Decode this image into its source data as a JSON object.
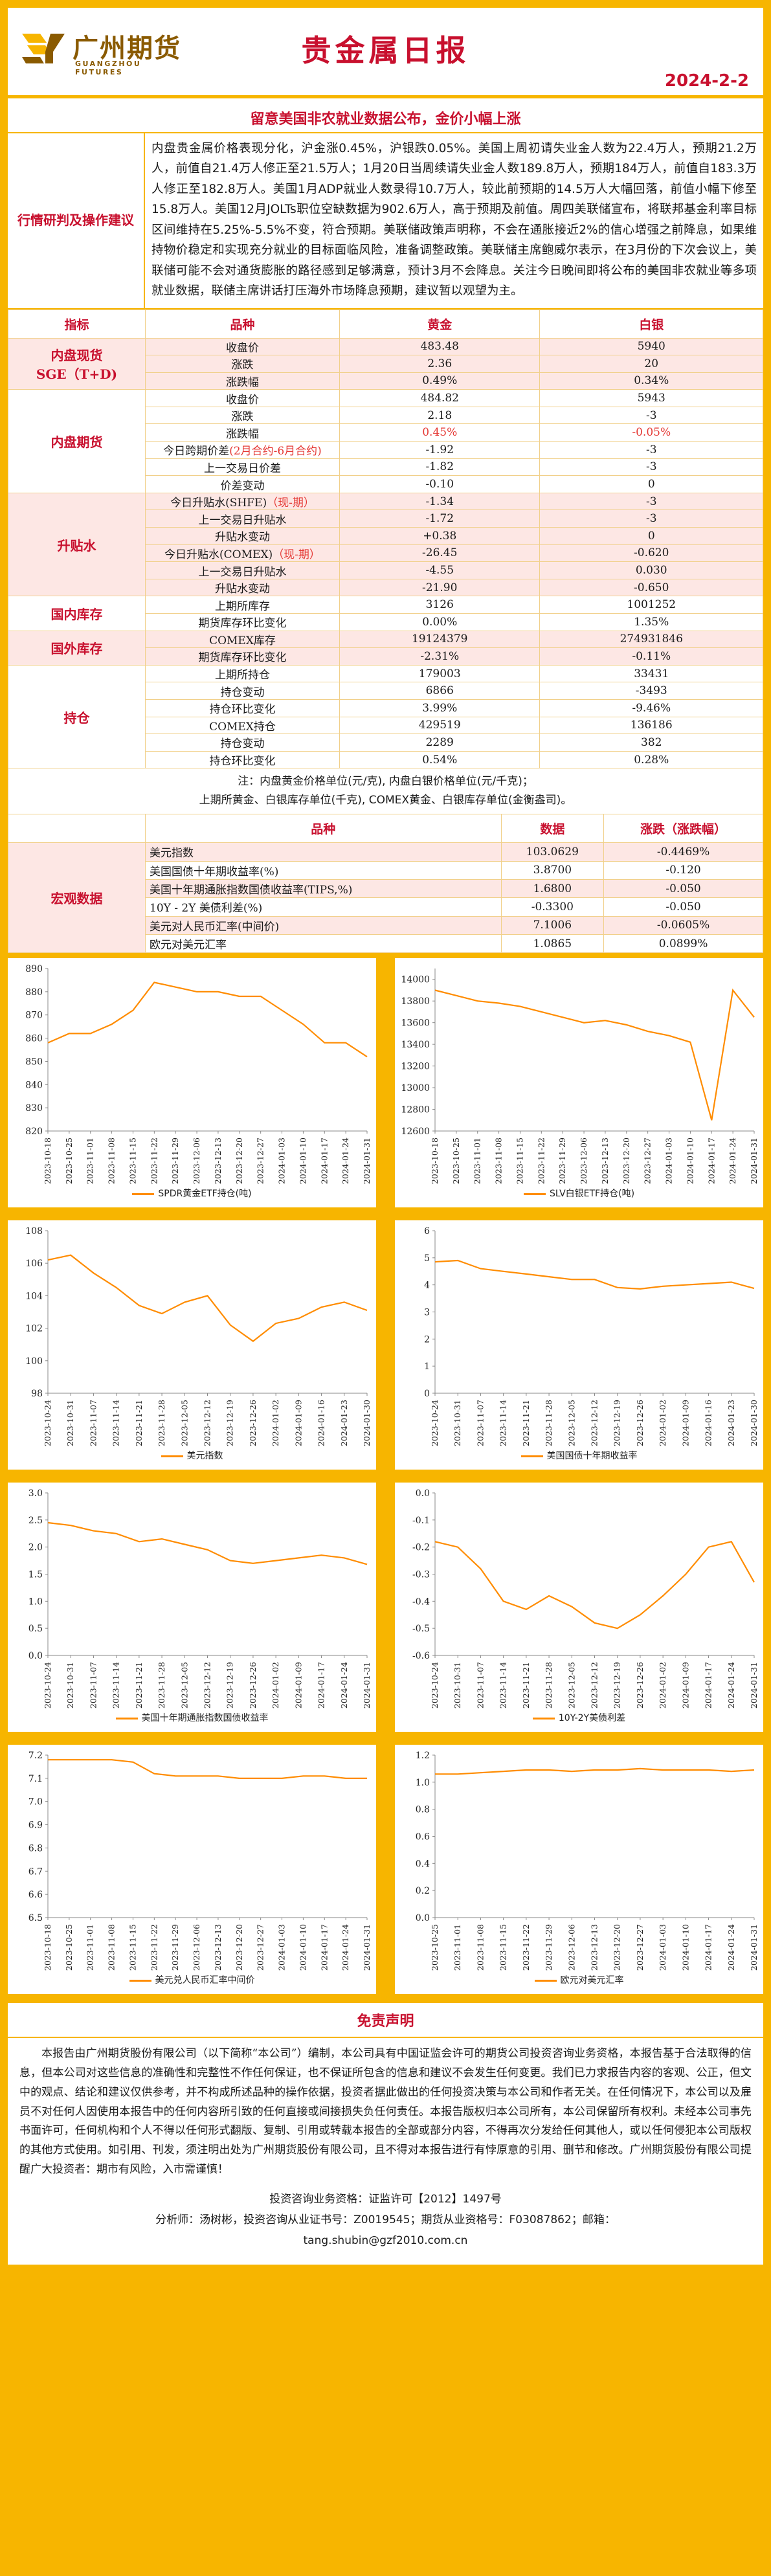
{
  "header": {
    "company_cn": "广州期货",
    "company_en": "GUANGZHOU FUTURES",
    "title": "贵金属日报",
    "date": "2024-2-2",
    "subtitle": "留意美国非农就业数据公布，金价小幅上涨"
  },
  "trend": {
    "label_line1": "行情研判",
    "label_line2": "及操作建议",
    "text": "内盘贵金属价格表现分化，沪金涨0.45%，沪银跌0.05%。美国上周初请失业金人数为22.4万人，预期21.2万人，前值自21.4万人修正至21.5万人；1月20日当周续请失业金人数189.8万人，预期184万人，前值自183.3万人修正至182.8万人。美国1月ADP就业人数录得10.7万人，较此前预期的14.5万人大幅回落，前值小幅下修至15.8万人。美国12月JOLTs职位空缺数据为902.6万人，高于预期及前值。周四美联储宣布，将联邦基金利率目标区间维持在5.25%-5.5%不变，符合预期。美联储政策声明称，不会在通胀接近2%的信心增强之前降息，如果维持物价稳定和实现充分就业的目标面临风险，准备调整政策。美联储主席鲍威尔表示，在3月份的下次会议上，美联储可能不会对通货膨胀的路径感到足够满意，预计3月不会降息。关注今日晚间即将公布的美国非农就业等多项就业数据，联储主席讲话打压海外市场降息预期，建议暂以观望为主。"
  },
  "table": {
    "headers": [
      "指标",
      "品种",
      "黄金",
      "白银"
    ],
    "sections": [
      {
        "group_line1": "内盘现货",
        "group_line2": "SGE（T+D)",
        "rows": [
          {
            "name": "收盘价",
            "gold": "483.48",
            "silver": "5940"
          },
          {
            "name": "涨跌",
            "gold": "2.36",
            "silver": "20"
          },
          {
            "name": "涨跌幅",
            "gold": "0.49%",
            "silver": "0.34%"
          }
        ]
      },
      {
        "group_line1": "内盘期货",
        "group_line2": "",
        "rows": [
          {
            "name": "收盘价",
            "gold": "484.82",
            "silver": "5943"
          },
          {
            "name": "涨跌",
            "gold": "2.18",
            "silver": "-3"
          },
          {
            "name": "涨跌幅",
            "gold": "0.45%",
            "silver": "-0.05%",
            "red": true
          },
          {
            "name": "今日跨期价差",
            "name_suffix": "(2月合约-6月合约)",
            "gold": "-1.92",
            "silver": "-3"
          },
          {
            "name": "上一交易日价差",
            "gold": "-1.82",
            "silver": "-3"
          },
          {
            "name": "价差变动",
            "gold": "-0.10",
            "silver": "0"
          }
        ]
      },
      {
        "group_line1": "升贴水",
        "group_line2": "",
        "rows": [
          {
            "name": "今日升贴水(SHFE)",
            "name_suffix": "（现-期）",
            "gold": "-1.34",
            "silver": "-3"
          },
          {
            "name": "上一交易日升贴水",
            "gold": "-1.72",
            "silver": "-3"
          },
          {
            "name": "升贴水变动",
            "gold": "+0.38",
            "silver": "0"
          },
          {
            "name": "今日升贴水(COMEX)",
            "name_suffix": "（现-期）",
            "gold": "-26.45",
            "silver": "-0.620"
          },
          {
            "name": "上一交易日升贴水",
            "gold": "-4.55",
            "silver": "0.030"
          },
          {
            "name": "升贴水变动",
            "gold": "-21.90",
            "silver": "-0.650"
          }
        ]
      },
      {
        "group_line1": "国内库存",
        "group_line2": "",
        "rows": [
          {
            "name": "上期所库存",
            "gold": "3126",
            "silver": "1001252"
          },
          {
            "name": "期货库存环比变化",
            "gold": "0.00%",
            "silver": "1.35%"
          }
        ]
      },
      {
        "group_line1": "国外库存",
        "group_line2": "",
        "rows": [
          {
            "name": "COMEX库存",
            "gold": "19124379",
            "silver": "274931846"
          },
          {
            "name": "期货库存环比变化",
            "gold": "-2.31%",
            "silver": "-0.11%"
          }
        ]
      },
      {
        "group_line1": "持仓",
        "group_line2": "",
        "rows": [
          {
            "name": "上期所持仓",
            "gold": "179003",
            "silver": "33431"
          },
          {
            "name": "持仓变动",
            "gold": "6866",
            "silver": "-3493"
          },
          {
            "name": "持仓环比变化",
            "gold": "3.99%",
            "silver": "-9.46%"
          },
          {
            "name": "COMEX持仓",
            "gold": "429519",
            "silver": "136186"
          },
          {
            "name": "持仓变动",
            "gold": "2289",
            "silver": "382"
          },
          {
            "name": "持仓环比变化",
            "gold": "0.54%",
            "silver": "0.28%"
          }
        ]
      }
    ],
    "note_line1": "注：内盘黄金价格单位(元/克), 内盘白银价格单位(元/千克)；",
    "note_line2": "上期所黄金、白银库存单位(千克), COMEX黄金、白银库存单位(金衡盎司)。"
  },
  "macro": {
    "group": "宏观数据",
    "headers": [
      "品种",
      "数据",
      "涨跌（涨跌幅）"
    ],
    "rows": [
      {
        "name": "美元指数",
        "value": "103.0629",
        "change": "-0.4469%"
      },
      {
        "name": "美国国债十年期收益率(%)",
        "value": "3.8700",
        "change": "-0.120"
      },
      {
        "name": "美国十年期通胀指数国债收益率(TIPS,%)",
        "value": "1.6800",
        "change": "-0.050"
      },
      {
        "name": "10Y - 2Y 美债利差(%)",
        "value": "-0.3300",
        "change": "-0.050"
      },
      {
        "name": "美元对人民币汇率(中间价)",
        "value": "7.1006",
        "change": "-0.0605%"
      },
      {
        "name": "欧元对美元汇率",
        "value": "1.0865",
        "change": "0.0899%"
      }
    ]
  },
  "colors": {
    "accent": "#f7b500",
    "brand_red": "#c8102e",
    "line": "#ff8c00"
  },
  "chart_data": [
    {
      "type": "line",
      "title": "SPDR黄金ETF持仓(吨)",
      "ylim": [
        820,
        890
      ],
      "yticks": [
        820,
        830,
        840,
        850,
        860,
        870,
        880,
        890
      ],
      "x": [
        "2023-10-18",
        "2023-10-25",
        "2023-11-01",
        "2023-11-08",
        "2023-11-15",
        "2023-11-22",
        "2023-11-29",
        "2023-12-06",
        "2023-12-13",
        "2023-12-20",
        "2023-12-27",
        "2024-01-03",
        "2024-01-10",
        "2024-01-17",
        "2024-01-24",
        "2024-01-31"
      ],
      "values": [
        858,
        862,
        862,
        866,
        872,
        884,
        882,
        880,
        880,
        878,
        878,
        872,
        866,
        858,
        858,
        852
      ]
    },
    {
      "type": "line",
      "title": "SLV白银ETF持仓(吨)",
      "ylim": [
        12600,
        14100
      ],
      "yticks": [
        12600,
        12800,
        13000,
        13200,
        13400,
        13600,
        13800,
        14000
      ],
      "x": [
        "2023-10-18",
        "2023-10-25",
        "2023-11-01",
        "2023-11-08",
        "2023-11-15",
        "2023-11-22",
        "2023-11-29",
        "2023-12-06",
        "2023-12-13",
        "2023-12-20",
        "2023-12-27",
        "2024-01-03",
        "2024-01-10",
        "2024-01-17",
        "2024-01-24",
        "2024-01-31"
      ],
      "values": [
        13900,
        13850,
        13800,
        13780,
        13750,
        13700,
        13650,
        13600,
        13620,
        13580,
        13520,
        13480,
        13420,
        12700,
        13900,
        13650
      ]
    },
    {
      "type": "line",
      "title": "美元指数",
      "ylim": [
        98,
        108
      ],
      "yticks": [
        98,
        100,
        102,
        104,
        106,
        108
      ],
      "x": [
        "2023-10-24",
        "2023-10-31",
        "2023-11-07",
        "2023-11-14",
        "2023-11-21",
        "2023-11-28",
        "2023-12-05",
        "2023-12-12",
        "2023-12-19",
        "2023-12-26",
        "2024-01-02",
        "2024-01-09",
        "2024-01-16",
        "2024-01-23",
        "2024-01-30"
      ],
      "values": [
        106.2,
        106.5,
        105.4,
        104.5,
        103.4,
        102.9,
        103.6,
        104.0,
        102.2,
        101.2,
        102.3,
        102.6,
        103.3,
        103.6,
        103.1
      ]
    },
    {
      "type": "line",
      "title": "美国国债十年期收益率",
      "ylim": [
        0,
        6
      ],
      "yticks": [
        0,
        1,
        2,
        3,
        4,
        5,
        6
      ],
      "x": [
        "2023-10-24",
        "2023-10-31",
        "2023-11-07",
        "2023-11-14",
        "2023-11-21",
        "2023-11-28",
        "2023-12-05",
        "2023-12-12",
        "2023-12-19",
        "2023-12-26",
        "2024-01-02",
        "2024-01-09",
        "2024-01-16",
        "2024-01-23",
        "2024-01-30"
      ],
      "values": [
        4.85,
        4.9,
        4.6,
        4.5,
        4.4,
        4.3,
        4.2,
        4.2,
        3.9,
        3.85,
        3.95,
        4.0,
        4.05,
        4.1,
        3.87
      ]
    },
    {
      "type": "line",
      "title": "美国十年期通胀指数国债收益率",
      "ylim": [
        0,
        3
      ],
      "yticks": [
        0,
        0.5,
        1.0,
        1.5,
        2.0,
        2.5,
        3.0
      ],
      "x": [
        "2023-10-24",
        "2023-10-31",
        "2023-11-07",
        "2023-11-14",
        "2023-11-21",
        "2023-11-28",
        "2023-12-05",
        "2023-12-12",
        "2023-12-19",
        "2023-12-26",
        "2024-01-02",
        "2024-01-09",
        "2024-01-17",
        "2024-01-24",
        "2024-01-31"
      ],
      "values": [
        2.45,
        2.4,
        2.3,
        2.25,
        2.1,
        2.15,
        2.05,
        1.95,
        1.75,
        1.7,
        1.75,
        1.8,
        1.85,
        1.8,
        1.68
      ]
    },
    {
      "type": "line",
      "title": "10Y-2Y美债利差",
      "ylim": [
        -0.6,
        0
      ],
      "yticks": [
        -0.6,
        -0.5,
        -0.4,
        -0.3,
        -0.2,
        -0.1,
        0
      ],
      "x": [
        "2023-10-24",
        "2023-10-31",
        "2023-11-07",
        "2023-11-14",
        "2023-11-21",
        "2023-11-28",
        "2023-12-05",
        "2023-12-12",
        "2023-12-19",
        "2023-12-26",
        "2024-01-02",
        "2024-01-09",
        "2024-01-17",
        "2024-01-24",
        "2024-01-31"
      ],
      "values": [
        -0.18,
        -0.2,
        -0.28,
        -0.4,
        -0.43,
        -0.38,
        -0.42,
        -0.48,
        -0.5,
        -0.45,
        -0.38,
        -0.3,
        -0.2,
        -0.18,
        -0.33
      ]
    },
    {
      "type": "line",
      "title": "美元兑人民币汇率中间价",
      "ylim": [
        6.5,
        7.2
      ],
      "yticks": [
        6.5,
        6.6,
        6.7,
        6.8,
        6.9,
        7.0,
        7.1,
        7.2
      ],
      "x": [
        "2023-10-18",
        "2023-10-25",
        "2023-11-01",
        "2023-11-08",
        "2023-11-15",
        "2023-11-22",
        "2023-11-29",
        "2023-12-06",
        "2023-12-13",
        "2023-12-20",
        "2023-12-27",
        "2024-01-03",
        "2024-01-10",
        "2024-01-17",
        "2024-01-24",
        "2024-01-31"
      ],
      "values": [
        7.18,
        7.18,
        7.18,
        7.18,
        7.17,
        7.12,
        7.11,
        7.11,
        7.11,
        7.1,
        7.1,
        7.1,
        7.11,
        7.11,
        7.1,
        7.1
      ]
    },
    {
      "type": "line",
      "title": "欧元对美元汇率",
      "ylim": [
        0,
        1.2
      ],
      "yticks": [
        0,
        0.2,
        0.4,
        0.6,
        0.8,
        1.0,
        1.2
      ],
      "x": [
        "2023-10-25",
        "2023-11-01",
        "2023-11-08",
        "2023-11-15",
        "2023-11-22",
        "2023-11-29",
        "2023-12-06",
        "2023-12-13",
        "2023-12-20",
        "2023-12-27",
        "2024-01-03",
        "2024-01-10",
        "2024-01-17",
        "2024-01-24",
        "2024-01-31"
      ],
      "values": [
        1.06,
        1.06,
        1.07,
        1.08,
        1.09,
        1.09,
        1.08,
        1.09,
        1.09,
        1.1,
        1.09,
        1.09,
        1.09,
        1.08,
        1.09
      ]
    }
  ],
  "disclaimer": {
    "title": "免责声明",
    "text": "本报告由广州期货股份有限公司（以下简称“本公司”）编制，本公司具有中国证监会许可的期货公司投资咨询业务资格，本报告基于合法取得的信息，但本公司对这些信息的准确性和完整性不作任何保证，也不保证所包含的信息和建议不会发生任何变更。我们已力求报告内容的客观、公正，但文中的观点、结论和建议仅供参考，并不构成所述品种的操作依据，投资者据此做出的任何投资决策与本公司和作者无关。在任何情况下，本公司以及雇员不对任何人因使用本报告中的任何内容所引致的任何直接或间接损失负任何责任。本报告版权归本公司所有，本公司保留所有权利。未经本公司事先书面许可，任何机构和个人不得以任何形式翻版、复制、引用或转载本报告的全部或部分内容，不得再次分发给任何其他人，或以任何侵犯本公司版权的其他方式使用。如引用、刊发，须注明出处为广州期货股份有限公司，且不得对本报告进行有悖原意的引用、删节和修改。广州期货股份有限公司提醒广大投资者：期市有风险，入市需谨慎！",
    "license": "投资咨询业务资格：证监许可【2012】1497号",
    "analyst": "分析师：汤树彬，投资咨询从业证书号：Z0019545；期货从业资格号：F03087862；邮箱：",
    "email": "tang.shubin@gzf2010.com.cn"
  }
}
